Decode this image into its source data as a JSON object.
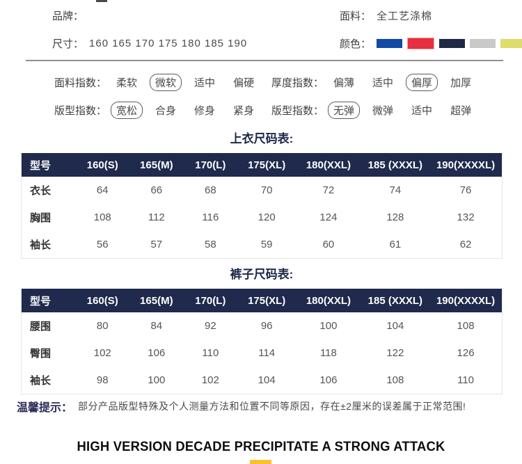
{
  "info": {
    "brand_label": "品牌：",
    "size_label": "尺寸：",
    "size_value": "160 165 170 175 180 185 190",
    "fabric_label": "面料：",
    "fabric_value": "全工艺涤棉",
    "color_label": "颜色：",
    "colors": [
      {
        "name": "blue",
        "hex": "#1149a4",
        "selected": false
      },
      {
        "name": "red",
        "hex": "#e62f3f",
        "selected": true
      },
      {
        "name": "navy",
        "hex": "#202944",
        "selected": false
      },
      {
        "name": "gray",
        "hex": "#c9c9c9",
        "selected": false
      },
      {
        "name": "yellow-green",
        "hex": "#dfdc6b",
        "selected": false
      }
    ]
  },
  "indices": {
    "rows": [
      {
        "left": {
          "label": "面料指数：",
          "options": [
            {
              "text": "柔软",
              "circled": false
            },
            {
              "text": "微软",
              "circled": true
            },
            {
              "text": "适中",
              "circled": false
            },
            {
              "text": "偏硬",
              "circled": false
            }
          ]
        },
        "right": {
          "label": "厚度指数：",
          "options": [
            {
              "text": "偏薄",
              "circled": false
            },
            {
              "text": "适中",
              "circled": false
            },
            {
              "text": "偏厚",
              "circled": true
            },
            {
              "text": "加厚",
              "circled": false
            }
          ]
        }
      },
      {
        "left": {
          "label": "版型指数：",
          "options": [
            {
              "text": "宽松",
              "circled": true
            },
            {
              "text": "合身",
              "circled": false
            },
            {
              "text": "修身",
              "circled": false
            },
            {
              "text": "紧身",
              "circled": false
            }
          ]
        },
        "right": {
          "label": "版型指数：",
          "options": [
            {
              "text": "无弹",
              "circled": true
            },
            {
              "text": "微弹",
              "circled": false
            },
            {
              "text": "适中",
              "circled": false
            },
            {
              "text": "超弹",
              "circled": false
            }
          ]
        }
      }
    ]
  },
  "size_charts": [
    {
      "title": "上衣尺码表:",
      "headers": [
        "型号",
        "160(S)",
        "165(M)",
        "170(L)",
        "175(XL)",
        "180(XXL)",
        "185 (XXXL)",
        "190(XXXXL)"
      ],
      "rows": [
        {
          "label": "衣长",
          "values": [
            "64",
            "66",
            "68",
            "70",
            "72",
            "74",
            "76"
          ]
        },
        {
          "label": "胸围",
          "values": [
            "108",
            "112",
            "116",
            "120",
            "124",
            "128",
            "132"
          ]
        },
        {
          "label": "袖长",
          "values": [
            "56",
            "57",
            "58",
            "59",
            "60",
            "61",
            "62"
          ]
        }
      ]
    },
    {
      "title": "裤子尺码表:",
      "headers": [
        "型号",
        "160(S)",
        "165(M)",
        "170(L)",
        "175(XL)",
        "180(XXL)",
        "185 (XXXL)",
        "190(XXXXL)"
      ],
      "rows": [
        {
          "label": "腰围",
          "values": [
            "80",
            "84",
            "92",
            "96",
            "100",
            "104",
            "108"
          ]
        },
        {
          "label": "臀围",
          "values": [
            "102",
            "106",
            "110",
            "114",
            "118",
            "122",
            "126"
          ]
        },
        {
          "label": "袖长",
          "values": [
            "98",
            "100",
            "102",
            "104",
            "106",
            "108",
            "110"
          ]
        }
      ]
    }
  ],
  "tips": {
    "label": "温馨提示：",
    "text": "部分产品版型特殊及个人测量方法和位置不同等原因，存在±2厘米的误差属于正常范围!"
  },
  "footer": {
    "headline": "HIGH VERSION DECADE PRECIPITATE A STRONG ATTACK"
  },
  "theme_colors": {
    "table_header_navy": "#1f2a4c",
    "title_navy": "#1d2848",
    "tip_navy": "#2b2b5a",
    "underline_yellow": "#fbc22d"
  }
}
